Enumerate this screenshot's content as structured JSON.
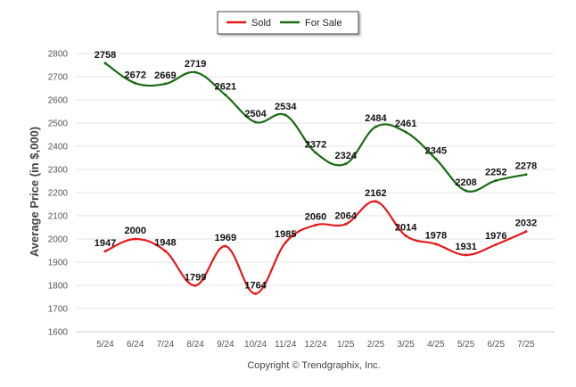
{
  "chart_data": {
    "type": "line",
    "categories": [
      "5/24",
      "6/24",
      "7/24",
      "8/24",
      "9/24",
      "10/24",
      "11/24",
      "12/24",
      "1/25",
      "2/25",
      "3/25",
      "4/25",
      "5/25",
      "6/25",
      "7/25"
    ],
    "series": [
      {
        "name": "Sold",
        "color": "#e31a1c",
        "values": [
          1947,
          2000,
          1948,
          1799,
          1969,
          1764,
          1985,
          2060,
          2064,
          2162,
          2014,
          1978,
          1931,
          1976,
          2032
        ]
      },
      {
        "name": "For Sale",
        "color": "#1a6b12",
        "values": [
          2758,
          2672,
          2669,
          2719,
          2621,
          2504,
          2534,
          2372,
          2324,
          2484,
          2461,
          2345,
          2208,
          2252,
          2278
        ]
      }
    ],
    "ylabel": "Average Price (in $,000)",
    "xlabel": "",
    "ylim": [
      1600,
      2800
    ],
    "yticks": [
      1600,
      1700,
      1800,
      1900,
      2000,
      2100,
      2200,
      2300,
      2400,
      2500,
      2600,
      2700,
      2800
    ],
    "grid": true,
    "legend_position": "top-center",
    "copyright": "Copyright © Trendgraphix, Inc."
  }
}
